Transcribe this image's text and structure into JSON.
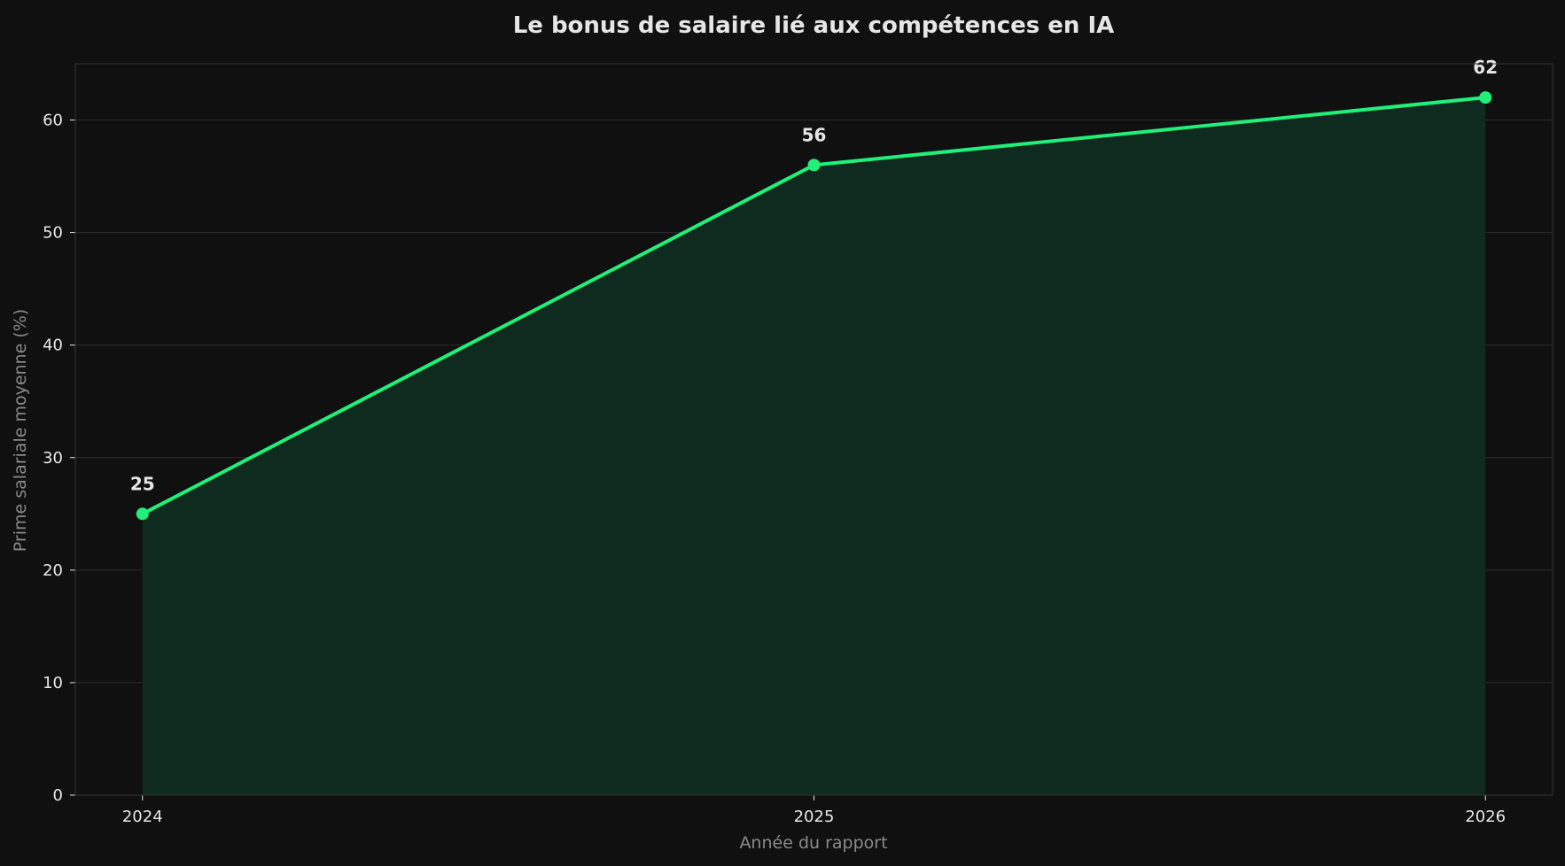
{
  "chart_data": {
    "type": "area",
    "title": "Le bonus de salaire lié aux compétences en IA",
    "xlabel": "Année du rapport",
    "ylabel": "Prime salariale moyenne (%)",
    "x": [
      "2024",
      "2025",
      "2026"
    ],
    "series": [
      {
        "values": [
          25,
          56,
          62
        ]
      }
    ],
    "data_labels": [
      "25",
      "56",
      "62"
    ],
    "xlim": [
      2023.9,
      2026.1
    ],
    "ylim": [
      0,
      65
    ],
    "yticks": [
      0,
      10,
      20,
      30,
      40,
      50,
      60
    ],
    "grid": true,
    "legend": "none",
    "colors": {
      "background": "#101010",
      "line": "#1ef07a",
      "fill": "#0f2a1e",
      "grid": "#2c2c2c",
      "frame": "#333333",
      "title": "#e6e6e6",
      "ticks": "#e6e6e6",
      "axis_label": "#8a8a8a",
      "data_label": "#e6e6e6"
    }
  }
}
